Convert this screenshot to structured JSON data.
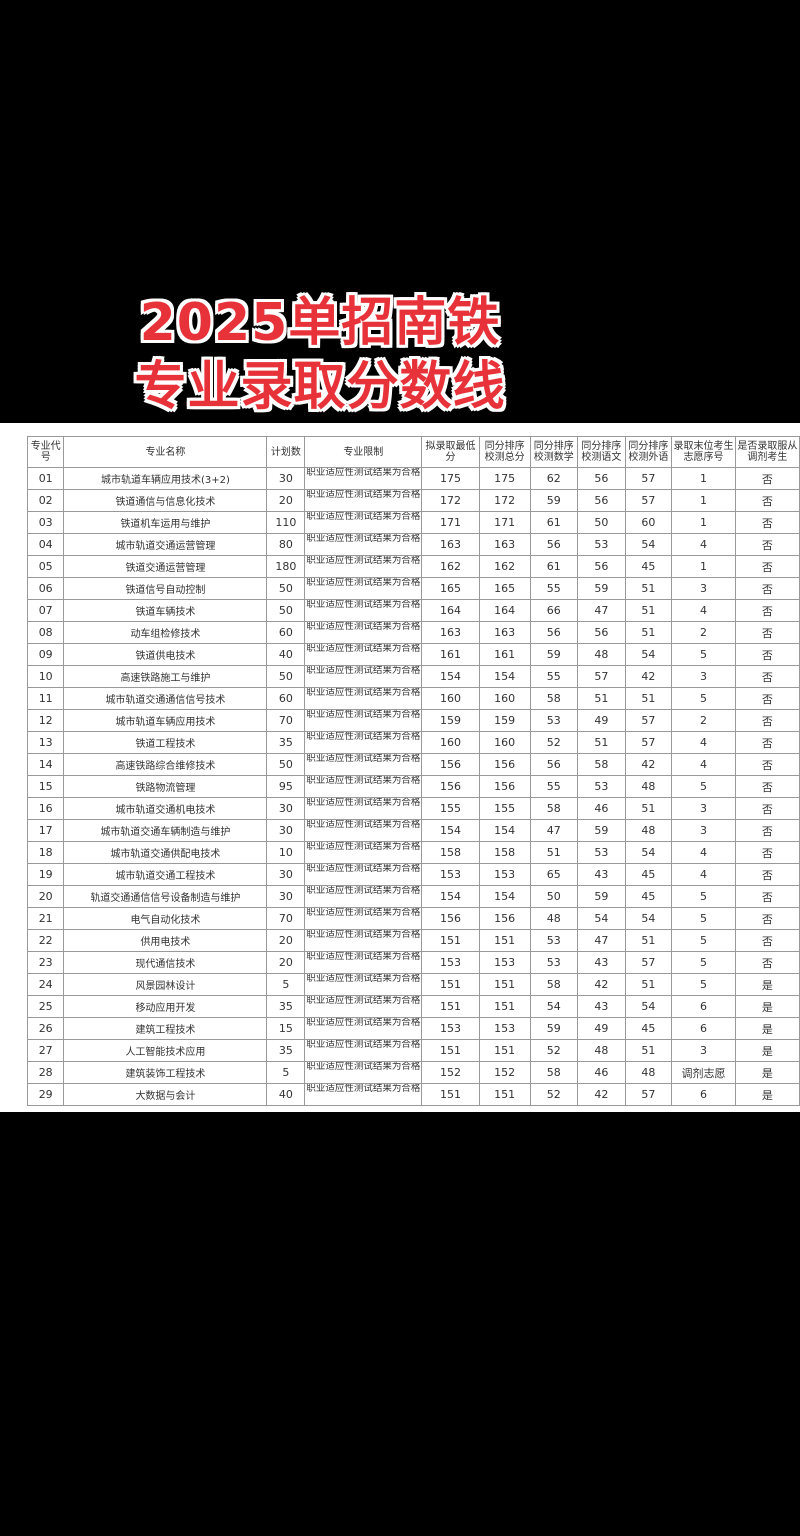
{
  "title": {
    "line1": "2025单招南铁",
    "line2": "专业录取分数线"
  },
  "colors": {
    "title": "#e8323a",
    "title_outline": "#ffffff",
    "background": "#000000"
  },
  "table": {
    "headers": [
      "专业代号",
      "专业名称",
      "计划数",
      "专业限制",
      "拟录取最低分",
      "同分排序校测总分",
      "同分排序校测数学",
      "同分排序校测语文",
      "同分排序校测外语",
      "录取末位考生志愿序号",
      "是否录取服从调剂考生"
    ],
    "rows": [
      [
        "01",
        "城市轨道车辆应用技术(3+2)",
        "30",
        "职业适应性测试结果为合格",
        "175",
        "175",
        "62",
        "56",
        "57",
        "1",
        "否"
      ],
      [
        "02",
        "铁道通信与信息化技术",
        "20",
        "职业适应性测试结果为合格",
        "172",
        "172",
        "59",
        "56",
        "57",
        "1",
        "否"
      ],
      [
        "03",
        "铁道机车运用与维护",
        "110",
        "职业适应性测试结果为合格",
        "171",
        "171",
        "61",
        "50",
        "60",
        "1",
        "否"
      ],
      [
        "04",
        "城市轨道交通运营管理",
        "80",
        "职业适应性测试结果为合格",
        "163",
        "163",
        "56",
        "53",
        "54",
        "4",
        "否"
      ],
      [
        "05",
        "铁道交通运营管理",
        "180",
        "职业适应性测试结果为合格",
        "162",
        "162",
        "61",
        "56",
        "45",
        "1",
        "否"
      ],
      [
        "06",
        "铁道信号自动控制",
        "50",
        "职业适应性测试结果为合格",
        "165",
        "165",
        "55",
        "59",
        "51",
        "3",
        "否"
      ],
      [
        "07",
        "铁道车辆技术",
        "50",
        "职业适应性测试结果为合格",
        "164",
        "164",
        "66",
        "47",
        "51",
        "4",
        "否"
      ],
      [
        "08",
        "动车组检修技术",
        "60",
        "职业适应性测试结果为合格",
        "163",
        "163",
        "56",
        "56",
        "51",
        "2",
        "否"
      ],
      [
        "09",
        "铁道供电技术",
        "40",
        "职业适应性测试结果为合格",
        "161",
        "161",
        "59",
        "48",
        "54",
        "5",
        "否"
      ],
      [
        "10",
        "高速铁路施工与维护",
        "50",
        "职业适应性测试结果为合格",
        "154",
        "154",
        "55",
        "57",
        "42",
        "3",
        "否"
      ],
      [
        "11",
        "城市轨道交通通信信号技术",
        "60",
        "职业适应性测试结果为合格",
        "160",
        "160",
        "58",
        "51",
        "51",
        "5",
        "否"
      ],
      [
        "12",
        "城市轨道车辆应用技术",
        "70",
        "职业适应性测试结果为合格",
        "159",
        "159",
        "53",
        "49",
        "57",
        "2",
        "否"
      ],
      [
        "13",
        "铁道工程技术",
        "35",
        "职业适应性测试结果为合格",
        "160",
        "160",
        "52",
        "51",
        "57",
        "4",
        "否"
      ],
      [
        "14",
        "高速铁路综合维修技术",
        "50",
        "职业适应性测试结果为合格",
        "156",
        "156",
        "56",
        "58",
        "42",
        "4",
        "否"
      ],
      [
        "15",
        "铁路物流管理",
        "95",
        "职业适应性测试结果为合格",
        "156",
        "156",
        "55",
        "53",
        "48",
        "5",
        "否"
      ],
      [
        "16",
        "城市轨道交通机电技术",
        "30",
        "职业适应性测试结果为合格",
        "155",
        "155",
        "58",
        "46",
        "51",
        "3",
        "否"
      ],
      [
        "17",
        "城市轨道交通车辆制造与维护",
        "30",
        "职业适应性测试结果为合格",
        "154",
        "154",
        "47",
        "59",
        "48",
        "3",
        "否"
      ],
      [
        "18",
        "城市轨道交通供配电技术",
        "10",
        "职业适应性测试结果为合格",
        "158",
        "158",
        "51",
        "53",
        "54",
        "4",
        "否"
      ],
      [
        "19",
        "城市轨道交通工程技术",
        "30",
        "职业适应性测试结果为合格",
        "153",
        "153",
        "65",
        "43",
        "45",
        "4",
        "否"
      ],
      [
        "20",
        "轨道交通通信信号设备制造与维护",
        "30",
        "职业适应性测试结果为合格",
        "154",
        "154",
        "50",
        "59",
        "45",
        "5",
        "否"
      ],
      [
        "21",
        "电气自动化技术",
        "70",
        "职业适应性测试结果为合格",
        "156",
        "156",
        "48",
        "54",
        "54",
        "5",
        "否"
      ],
      [
        "22",
        "供用电技术",
        "20",
        "职业适应性测试结果为合格",
        "151",
        "151",
        "53",
        "47",
        "51",
        "5",
        "否"
      ],
      [
        "23",
        "现代通信技术",
        "20",
        "职业适应性测试结果为合格",
        "153",
        "153",
        "53",
        "43",
        "57",
        "5",
        "否"
      ],
      [
        "24",
        "风景园林设计",
        "5",
        "职业适应性测试结果为合格",
        "151",
        "151",
        "58",
        "42",
        "51",
        "5",
        "是"
      ],
      [
        "25",
        "移动应用开发",
        "35",
        "职业适应性测试结果为合格",
        "151",
        "151",
        "54",
        "43",
        "54",
        "6",
        "是"
      ],
      [
        "26",
        "建筑工程技术",
        "15",
        "职业适应性测试结果为合格",
        "153",
        "153",
        "59",
        "49",
        "45",
        "6",
        "是"
      ],
      [
        "27",
        "人工智能技术应用",
        "35",
        "职业适应性测试结果为合格",
        "151",
        "151",
        "52",
        "48",
        "51",
        "3",
        "是"
      ],
      [
        "28",
        "建筑装饰工程技术",
        "5",
        "职业适应性测试结果为合格",
        "152",
        "152",
        "58",
        "46",
        "48",
        "调剂志愿",
        "是"
      ],
      [
        "29",
        "大数据与会计",
        "40",
        "职业适应性测试结果为合格",
        "151",
        "151",
        "52",
        "42",
        "57",
        "6",
        "是"
      ]
    ]
  }
}
